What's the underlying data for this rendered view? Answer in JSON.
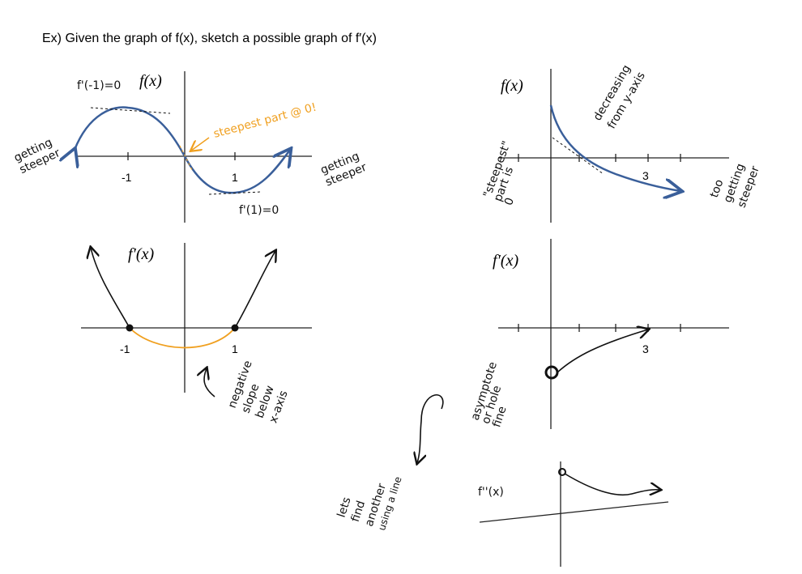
{
  "title": "Ex) Given the graph of f(x), sketch a possible graph of f′(x)",
  "graphs": [
    {
      "label": "f(x)",
      "ticks": [
        "-1",
        "1"
      ],
      "notes": [
        [
          "f'(-1)=0"
        ],
        [
          "getting",
          "steeper"
        ],
        [
          "steepest part @ 0!"
        ],
        [
          "getting",
          "steeper"
        ],
        [
          "f'(1)=0"
        ]
      ]
    },
    {
      "label": "f′(x)",
      "ticks": [
        "-1",
        "1"
      ],
      "notes": [
        [
          "negative",
          "slope",
          "below",
          "x-axis"
        ]
      ]
    },
    {
      "label": "f(x)",
      "ticks": [
        "3"
      ],
      "notes": [
        [
          "decreasing",
          "from y-axis"
        ],
        [
          "\"steepest\"",
          "part is",
          "0"
        ],
        [
          "too",
          "getting",
          "steeper"
        ]
      ]
    },
    {
      "label": "f′(x)",
      "ticks": [
        "3"
      ],
      "notes": [
        [
          "asymptote",
          "or hole",
          "fine"
        ]
      ]
    },
    {
      "label": "f''(x)"
    }
  ],
  "side_note": [
    "lets",
    "find",
    "another",
    "using a line"
  ]
}
